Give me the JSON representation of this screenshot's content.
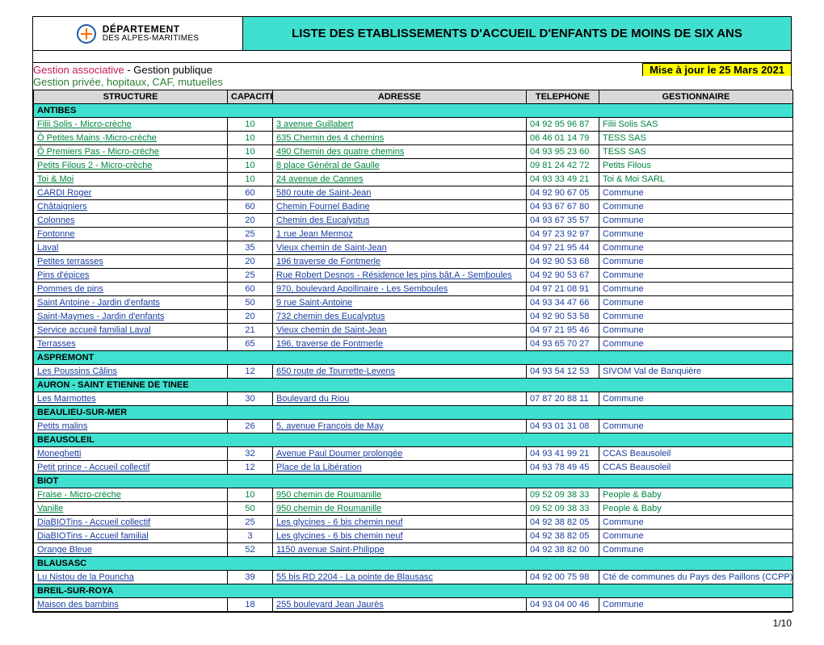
{
  "logo": {
    "line1": "DÉPARTEMENT",
    "line2": "DES ALPES-MARITIMES"
  },
  "title": "LISTE DES ETABLISSEMENTS D'ACCUEIL D'ENFANTS DE MOINS DE SIX ANS",
  "legend": {
    "assoc": "Gestion associative",
    "pub": " - Gestion publique",
    "priv": "Gestion privée, hopitaux, CAF, mutuelles",
    "maj": "Mise à jour le 25 Mars 2021"
  },
  "columns": {
    "structure": "STRUCTURE",
    "capacite": "CAPACITE",
    "adresse": "ADRESSE",
    "telephone": "TELEPHONE",
    "gestionnaire": "GESTIONNAIRE"
  },
  "rows": [
    {
      "type": "section",
      "name": "ANTIBES"
    },
    {
      "type": "data",
      "g": "priv",
      "structure": "Filii Solis - Micro-crèche",
      "cap": "10",
      "adresse": "3 avenue Guillabert",
      "tel": "04 92 95 96 87",
      "gest": "Filii Solis SAS"
    },
    {
      "type": "data",
      "g": "priv",
      "structure": "Ô Petites Mains -Micro-crèche",
      "cap": "10",
      "adresse": "635  Chemin des 4 chemins",
      "tel": "06 46 01 14 79",
      "gest": "TESS SAS"
    },
    {
      "type": "data",
      "g": "priv",
      "structure": "Ô Premiers Pas - Micro-crèche",
      "cap": "10",
      "adresse": "490 Chemin des quatre chemins",
      "tel": "04 93 95 23 60",
      "gest": "TESS SAS"
    },
    {
      "type": "data",
      "g": "priv",
      "structure": "Petits Filous 2 - Micro-crèche",
      "cap": "10",
      "adresse": "8 place Général de Gaulle",
      "tel": "09 81 24 42 72",
      "gest": "Petits Filous"
    },
    {
      "type": "data",
      "g": "priv",
      "structure": "Toi & Moi",
      "cap": "10",
      "adresse": "24 avenue de Cannes",
      "tel": "04 93 33 49 21",
      "gest": "Toi & Moi SARL"
    },
    {
      "type": "data",
      "g": "pub",
      "structure": "CARDI  Roger",
      "cap": "60",
      "adresse": "580 route de Saint-Jean",
      "tel": "04 92 90 67 05",
      "gest": "Commune"
    },
    {
      "type": "data",
      "g": "pub",
      "structure": "Châtaigniers",
      "cap": "60",
      "adresse": "Chemin Fournel Badine",
      "tel": "04 93 67 67 80",
      "gest": "Commune"
    },
    {
      "type": "data",
      "g": "pub",
      "structure": "Colonnes",
      "cap": "20",
      "adresse": "Chemin des Eucalyptus",
      "tel": "04 93 67 35 57",
      "gest": "Commune"
    },
    {
      "type": "data",
      "g": "pub",
      "structure": "Fontonne",
      "cap": "25",
      "adresse": "1 rue Jean Mermoz",
      "tel": "04 97 23 92 97",
      "gest": "Commune"
    },
    {
      "type": "data",
      "g": "pub",
      "structure": "Laval",
      "cap": "35",
      "adresse": "Vieux chemin de Saint-Jean",
      "tel": "04 97 21 95 44",
      "gest": "Commune"
    },
    {
      "type": "data",
      "g": "pub",
      "structure": "Petites terrasses",
      "cap": "20",
      "adresse": "196 traverse de Fontmerle",
      "tel": "04 92 90 53 68",
      "gest": "Commune"
    },
    {
      "type": "data",
      "g": "pub",
      "structure": "Pins d'épices",
      "cap": "25",
      "adresse": "Rue Robert Desnos - Résidence les pins bât.A - Semboules",
      "tel": "04 92 90 53 67",
      "gest": "Commune"
    },
    {
      "type": "data",
      "g": "pub",
      "structure": "Pommes de pins",
      "cap": "60",
      "adresse": " 970, boulevard Apollinaire - Les Semboules",
      "tel": "04 97 21 08 91",
      "gest": "Commune"
    },
    {
      "type": "data",
      "g": "pub",
      "structure": "Saint Antoine - Jardin d'enfants",
      "cap": "50",
      "adresse": "9 rue Saint-Antoine",
      "tel": "04 93 34 47 66",
      "gest": "Commune"
    },
    {
      "type": "data",
      "g": "pub",
      "structure": "Saint-Maymes - Jardin d'enfants",
      "cap": "20",
      "adresse": "732 chemin des Eucalyptus",
      "tel": "04 92 90 53 58",
      "gest": "Commune"
    },
    {
      "type": "data",
      "g": "pub",
      "structure": "Service accueil familial Laval",
      "cap": "21",
      "adresse": "Vieux chemin de Saint-Jean",
      "tel": "04 97 21 95 46",
      "gest": "Commune"
    },
    {
      "type": "data",
      "g": "pub",
      "structure": "Terrasses",
      "cap": "65",
      "adresse": "196, traverse de Fontmerle",
      "tel": "04 93 65 70 27",
      "gest": "Commune"
    },
    {
      "type": "section",
      "name": "ASPREMONT"
    },
    {
      "type": "data",
      "g": "pub",
      "structure": "Les Poussins Câlins",
      "cap": "12",
      "adresse": "650 route de Tourrette-Levens",
      "tel": "04 93 54 12 53",
      "gest": "SIVOM Val de Banquière"
    },
    {
      "type": "section",
      "name": "AURON - SAINT ETIENNE DE TINEE"
    },
    {
      "type": "data",
      "g": "pub",
      "structure": "Les Marmottes",
      "cap": "30",
      "adresse": "Boulevard du Riou",
      "tel": "07 87 20 88 11",
      "gest": "Commune"
    },
    {
      "type": "section",
      "name": "BEAULIEU-SUR-MER"
    },
    {
      "type": "data",
      "g": "pub",
      "structure": "Petits malins",
      "cap": "26",
      "adresse": "5, avenue François de May",
      "tel": "04 93 01 31 08",
      "gest": "Commune"
    },
    {
      "type": "section",
      "name": "BEAUSOLEIL"
    },
    {
      "type": "data",
      "g": "pub",
      "structure": "Moneghetti",
      "cap": "32",
      "adresse": "Avenue Paul Doumer prolongée",
      "tel": "04 93 41 99 21",
      "gest": "CCAS Beausoleil"
    },
    {
      "type": "data",
      "g": "pub",
      "structure": "Petit prince  - Accueil collectif",
      "cap": "12",
      "adresse": "Place de la Libération",
      "tel": "04 93 78 49 45",
      "gest": "CCAS Beausoleil"
    },
    {
      "type": "section",
      "name": "BIOT"
    },
    {
      "type": "data",
      "g": "priv",
      "structure": "Fraise - Micro-crèche",
      "cap": "10",
      "adresse": "950 chemin de Roumanille",
      "tel": "09 52  09 38 33",
      "gest": "People & Baby"
    },
    {
      "type": "data",
      "g": "priv",
      "structure": "Vanille",
      "cap": "50",
      "adresse": "950 chemin de Roumanille",
      "tel": "09 52 09 38 33",
      "gest": "People & Baby"
    },
    {
      "type": "data",
      "g": "pub",
      "structure": "DiaBIOTins - Accueil collectif",
      "cap": "25",
      "adresse": "Les glycines - 6 bis chemin neuf",
      "tel": "04 92 38 82 05",
      "gest": "Commune"
    },
    {
      "type": "data",
      "g": "pub",
      "structure": "DiaBIOTins - Accueil familial",
      "cap": "3",
      "adresse": "Les glycines - 6 bis chemin neuf",
      "tel": "04 92 38 82 05",
      "gest": "Commune"
    },
    {
      "type": "data",
      "g": "pub",
      "structure": "Orange Bleue",
      "cap": "52",
      "adresse": "1150 avenue Saint-Philippe",
      "tel": "04 92 38 82 00",
      "gest": "Commune"
    },
    {
      "type": "section",
      "name": "BLAUSASC"
    },
    {
      "type": "data",
      "g": "pub",
      "structure": "Lu Nistou de la Pouncha",
      "cap": "39",
      "adresse": "55 bis RD 2204  - La pointe de Blausasc",
      "tel": "04 92 00 75 98",
      "gest": "Cté de communes du Pays des Paillons (CCPP)"
    },
    {
      "type": "section",
      "name": "BREIL-SUR-ROYA"
    },
    {
      "type": "data",
      "g": "pub",
      "structure": "Maison des bambins",
      "cap": "18",
      "adresse": "255 boulevard Jean Jaurès",
      "tel": "04 93 04 00 46",
      "gest": "Commune"
    }
  ],
  "page": "1/10"
}
